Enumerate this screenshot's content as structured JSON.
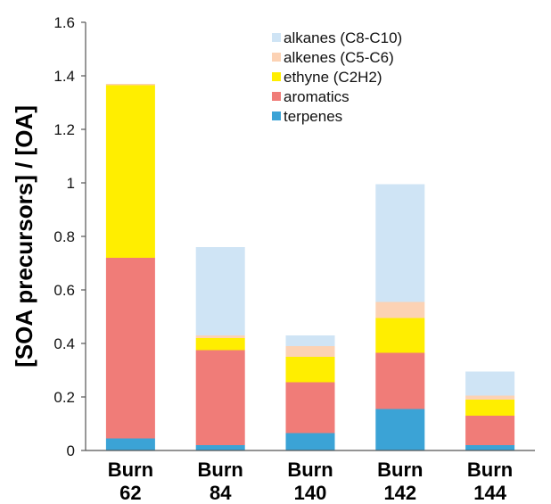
{
  "chart_data": {
    "type": "bar",
    "stacked": true,
    "title": "",
    "xlabel": "",
    "ylabel": "[SOA precursors] / [OA]",
    "ylim": [
      0,
      1.6
    ],
    "yticks": [
      "0",
      "0.2",
      "0.4",
      "0.6",
      "0.8",
      "1",
      "1.2",
      "1.4",
      "1.6"
    ],
    "yticks_values": [
      0,
      0.2,
      0.4,
      0.6,
      0.8,
      1.0,
      1.2,
      1.4,
      1.6
    ],
    "grid": false,
    "legend_position": "top-right",
    "categories": [
      {
        "line1": "Burn",
        "line2": "62"
      },
      {
        "line1": "Burn",
        "line2": "84"
      },
      {
        "line1": "Burn",
        "line2": "140"
      },
      {
        "line1": "Burn",
        "line2": "142"
      },
      {
        "line1": "Burn",
        "line2": "144"
      }
    ],
    "series": [
      {
        "name": "terpenes",
        "color": "#3ba3d6",
        "values": [
          0.045,
          0.02,
          0.065,
          0.155,
          0.02
        ]
      },
      {
        "name": "aromatics",
        "color": "#f07c78",
        "values": [
          0.675,
          0.355,
          0.19,
          0.21,
          0.11
        ]
      },
      {
        "name": "ethyne (C2H2)",
        "color": "#ffee00",
        "values": [
          0.645,
          0.045,
          0.095,
          0.13,
          0.06
        ]
      },
      {
        "name": "alkenes (C5-C6)",
        "color": "#fcd2b4",
        "values": [
          0.005,
          0.01,
          0.04,
          0.06,
          0.015
        ]
      },
      {
        "name": "alkanes (C8-C10)",
        "color": "#cfe4f5",
        "values": [
          0.0,
          0.33,
          0.04,
          0.44,
          0.09
        ]
      }
    ],
    "legend_order": [
      "alkanes (C8-C10)",
      "alkenes (C5-C6)",
      "ethyne (C2H2)",
      "aromatics",
      "terpenes"
    ]
  }
}
